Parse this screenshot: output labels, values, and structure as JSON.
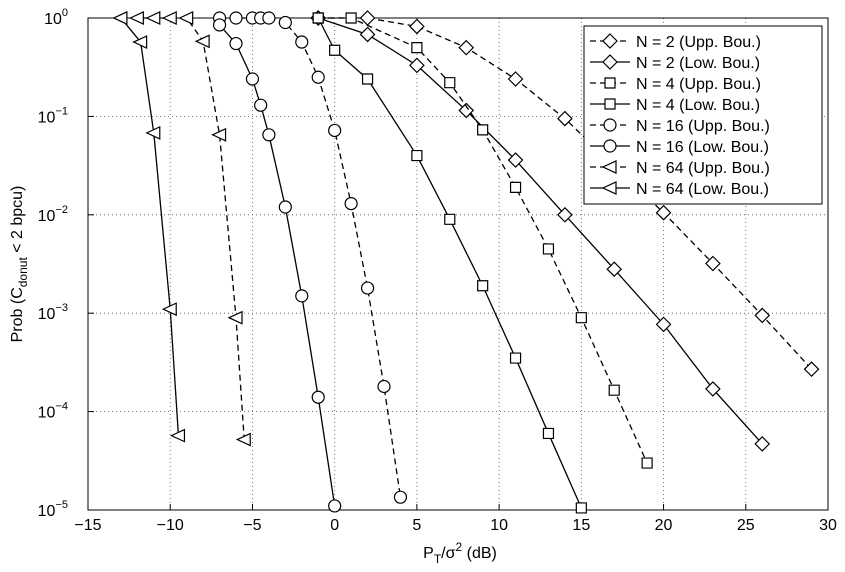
{
  "chart_data": {
    "type": "line",
    "log_y": true,
    "grid": true,
    "legend_position": "upper right",
    "xlabel_parts": [
      "P",
      "T",
      "/σ",
      "2",
      " (dB)"
    ],
    "ylabel_parts": [
      "Prob (C",
      "donut",
      " < 2 bpcu)"
    ],
    "xlim": [
      -15,
      30
    ],
    "ylim": [
      1e-05,
      1
    ],
    "xticks": [
      {
        "value": -15,
        "label": "−15"
      },
      {
        "value": -10,
        "label": "−10"
      },
      {
        "value": -5,
        "label": "−5"
      },
      0,
      5,
      10,
      15,
      20,
      25,
      30
    ],
    "yticks": [
      {
        "value": 1e-05,
        "label": "10",
        "exponent": "−5"
      },
      {
        "value": 0.0001,
        "label": "10",
        "exponent": "−4"
      },
      {
        "value": 0.001,
        "label": "10",
        "exponent": "−3"
      },
      {
        "value": 0.01,
        "label": "10",
        "exponent": "−2"
      },
      {
        "value": 0.1,
        "label": "10",
        "exponent": "−1"
      },
      {
        "value": 1,
        "label": "10",
        "exponent": "0"
      }
    ],
    "series": [
      {
        "name": "N = 2 (Upp. Bou.)",
        "color": "#000000",
        "dashed": true,
        "marker": "diamond",
        "x": [
          -1,
          2,
          5,
          8,
          11,
          14,
          20,
          23,
          26,
          29
        ],
        "values": [
          1,
          1,
          0.82,
          0.5,
          0.24,
          0.095,
          0.0105,
          0.0032,
          0.00095,
          0.00027
        ]
      },
      {
        "name": "N = 2 (Low. Bou.)",
        "color": "#000000",
        "dashed": false,
        "marker": "diamond",
        "x": [
          -1,
          2,
          5,
          8,
          11,
          14,
          17,
          20,
          23,
          26
        ],
        "values": [
          1,
          0.68,
          0.33,
          0.115,
          0.036,
          0.01,
          0.0028,
          0.00077,
          0.00017,
          4.7e-05
        ]
      },
      {
        "name": "N = 4 (Upp. Bou.)",
        "color": "#000000",
        "dashed": true,
        "marker": "square",
        "x": [
          -1,
          1,
          5,
          7,
          9,
          11,
          13,
          15,
          17,
          19
        ],
        "values": [
          1,
          1,
          0.5,
          0.22,
          0.073,
          0.019,
          0.0045,
          0.0009,
          0.000165,
          3e-05
        ]
      },
      {
        "name": "N = 4 (Low. Bou.)",
        "color": "#000000",
        "dashed": false,
        "marker": "square",
        "x": [
          -1,
          0,
          2,
          5,
          7,
          9,
          11,
          13,
          15
        ],
        "values": [
          1,
          0.47,
          0.24,
          0.04,
          0.009,
          0.0019,
          0.00035,
          6e-05,
          1.05e-05
        ]
      },
      {
        "name": "N = 16 (Upp. Bou.)",
        "color": "#000000",
        "dashed": true,
        "marker": "circle",
        "x": [
          -7,
          -6,
          -5,
          -4.5,
          -4,
          -3,
          -2,
          -1,
          0,
          1,
          2,
          3,
          4
        ],
        "values": [
          1,
          1,
          1,
          1,
          1,
          0.9,
          0.57,
          0.25,
          0.072,
          0.013,
          0.0018,
          0.00018,
          1.35e-05
        ]
      },
      {
        "name": "N = 16 (Low. Bou.)",
        "color": "#000000",
        "dashed": false,
        "marker": "circle",
        "x": [
          -7,
          -6,
          -5,
          -4.5,
          -4,
          -3,
          -2,
          -1,
          0
        ],
        "values": [
          0.85,
          0.55,
          0.24,
          0.13,
          0.065,
          0.012,
          0.0015,
          0.00014,
          1.1e-05
        ]
      },
      {
        "name": "N = 64 (Upp. Bou.)",
        "color": "#000000",
        "dashed": true,
        "marker": "triangle",
        "x": [
          -13,
          -12,
          -11,
          -10,
          -9,
          -8,
          -7,
          -6,
          -5.5
        ],
        "values": [
          1,
          1,
          1,
          1,
          1,
          0.58,
          0.065,
          0.0009,
          5.2e-05
        ]
      },
      {
        "name": "N = 64 (Low. Bou.)",
        "color": "#000000",
        "dashed": false,
        "marker": "triangle",
        "x": [
          -13,
          -11.8,
          -11,
          -10,
          -9.5
        ],
        "values": [
          1,
          0.57,
          0.068,
          0.0011,
          5.7e-05
        ]
      }
    ]
  }
}
